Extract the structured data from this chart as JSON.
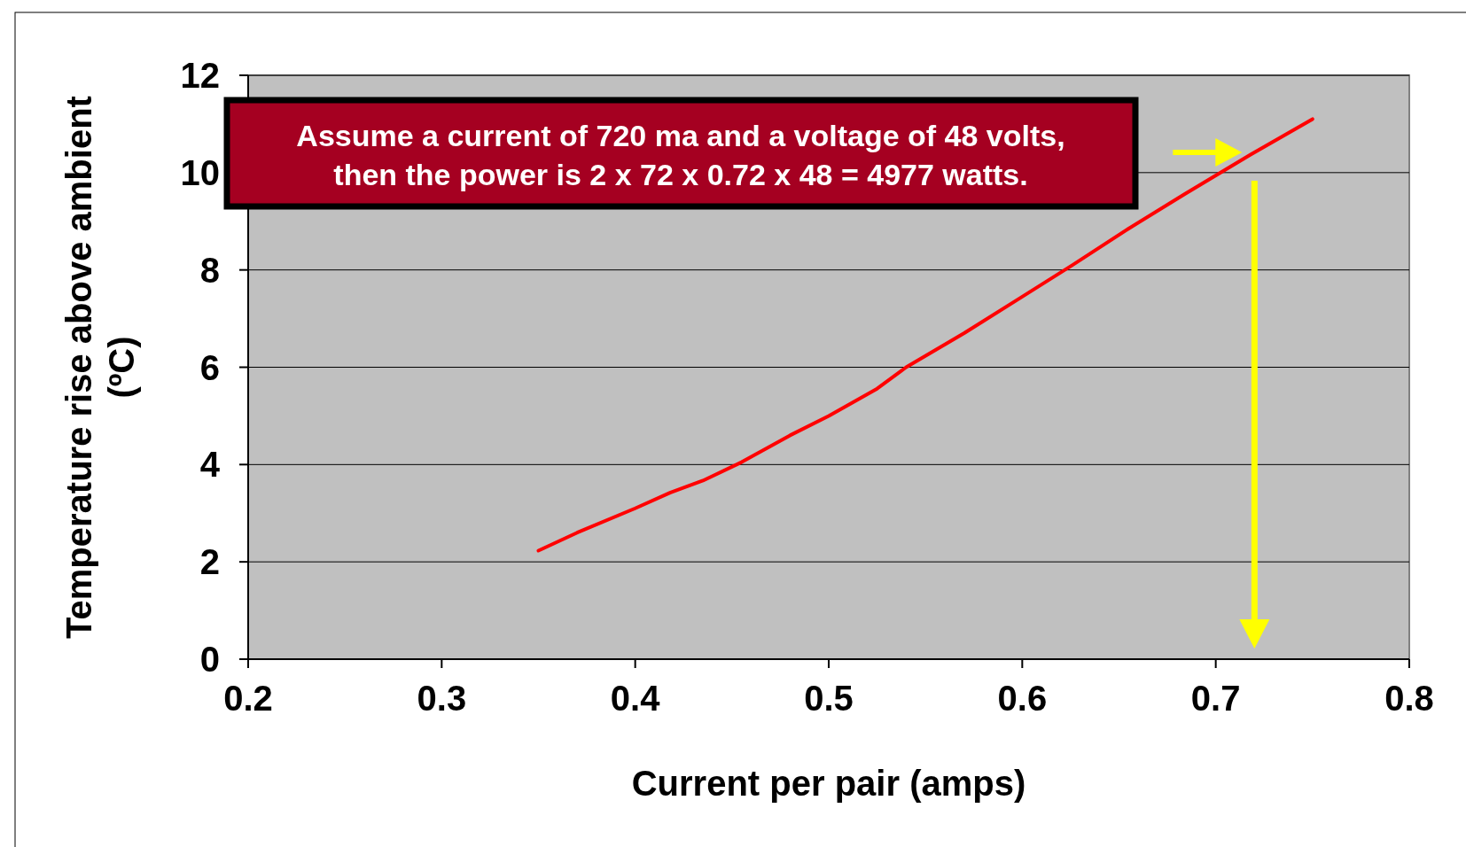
{
  "chart_data": {
    "type": "line",
    "xlabel": "Current per pair (amps)",
    "ylabel": "Temperature rise above ambient (ºC)",
    "series": [
      {
        "color": "#ff0000",
        "x": [
          0.35,
          0.37,
          0.4,
          0.418,
          0.435,
          0.455,
          0.48,
          0.5,
          0.525,
          0.54,
          0.57,
          0.6,
          0.626,
          0.655,
          0.684,
          0.718,
          0.75
        ],
        "values": [
          2.23,
          2.6,
          3.1,
          3.42,
          3.67,
          4.05,
          4.6,
          5.0,
          5.56,
          6.0,
          6.7,
          7.45,
          8.1,
          8.85,
          9.56,
          10.37,
          11.1
        ]
      }
    ],
    "xlim": [
      0.2,
      0.8
    ],
    "xticks": [
      {
        "value": 0.2,
        "label": "0.2"
      },
      {
        "value": 0.3,
        "label": "0.3"
      },
      {
        "value": 0.4,
        "label": "0.4"
      },
      {
        "value": 0.5,
        "label": "0.5"
      },
      {
        "value": 0.6,
        "label": "0.6"
      },
      {
        "value": 0.7,
        "label": "0.7"
      },
      {
        "value": 0.8,
        "label": "0.8"
      }
    ],
    "ylim": [
      0,
      12
    ],
    "yticks": [
      0,
      2,
      4,
      6,
      8,
      10,
      12
    ],
    "grid": "y",
    "marker": "none",
    "line_style": "solid",
    "ref_lines": [
      {
        "axis": "x",
        "value": 0.72,
        "color": "#ffff00"
      }
    ],
    "annotations": [
      "Assume a current of 720 ma and a voltage of 48 volts, then the power is 2 x 72 x 0.72 x 48 = 4977 watts."
    ]
  }
}
